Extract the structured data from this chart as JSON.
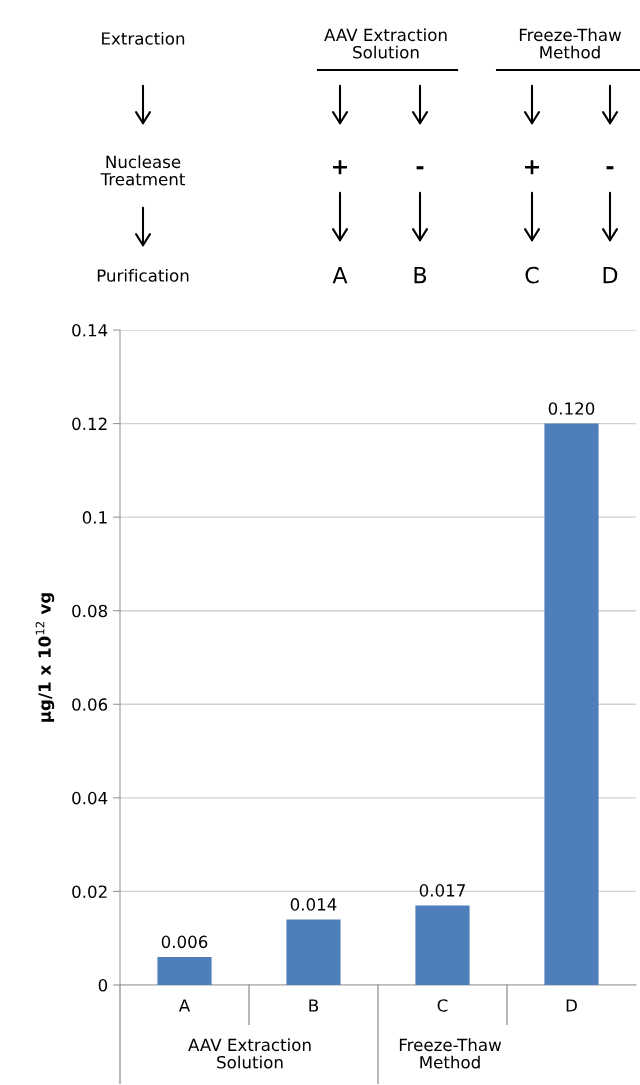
{
  "chart_data": {
    "type": "bar",
    "ylabel": "μg/1 x 10$^{12}$ vg",
    "categories": [
      "A",
      "B",
      "C",
      "D"
    ],
    "values": [
      0.006,
      0.014,
      0.017,
      0.12
    ],
    "value_labels": [
      "0.006",
      "0.014",
      "0.017",
      "0.120"
    ],
    "color": "#4f7fba",
    "ylim": [
      0,
      0.14
    ],
    "yticks": [
      0,
      0.02,
      0.04,
      0.06,
      0.08,
      0.1,
      0.12,
      0.14
    ],
    "grid": "y",
    "annotations": [
      "Extraction",
      "Nuclease\nTreatment",
      "Purification",
      "AAV Extraction\nSolution",
      "Freeze-Thaw\nMethod",
      "+",
      "-",
      "+",
      "-",
      "A",
      "B",
      "C",
      "D",
      "AAV Extraction\nSolution",
      "Freeze-Thaw\nMethod"
    ]
  }
}
